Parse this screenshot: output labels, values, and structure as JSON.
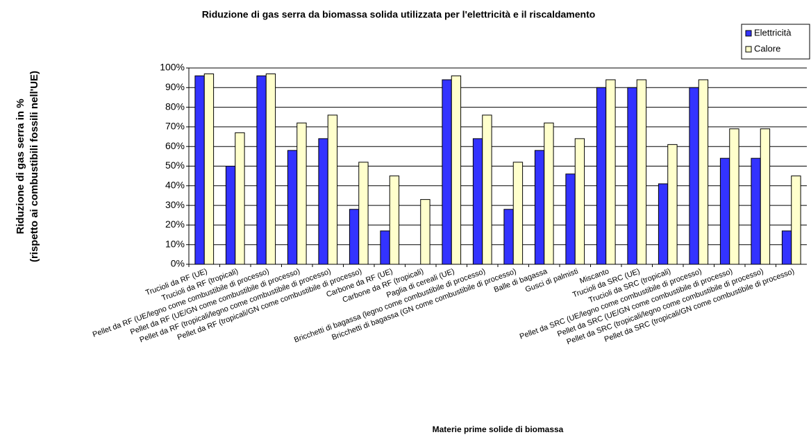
{
  "chart_data": {
    "type": "bar",
    "title": "Riduzione di gas serra da biomassa solida utilizzata per l'elettricità e il riscaldamento",
    "y_label_lines": [
      "Riduzione di gas serra in %",
      "(rispetto ai combustibili fossili nell'UE)"
    ],
    "x_label": "Materie prime solide di biomassa",
    "categories": [
      "Trucioli da RF (UE)",
      "Trucioli da RF (tropicali)",
      "Pellet da RF (UE/legno come combustibile di processo)",
      "Pellet da RF (UE/GN come combustibile di processo)",
      "Pellet da RF (tropicali/legno come combustibile di processo)",
      "Pellet da RF (tropicali/GN come combustibile di processo)",
      "Carbone da RF (UE)",
      "Carbone da RF (tropicali)",
      "Paglia di cereali (UE)",
      "Bricchetti di bagassa (legno come combustibile di processo)",
      "Bricchetti di bagassa (GN come combustibile di processo)",
      "Balle di bagassa",
      "Gusci di palmisti",
      "Miscanto",
      "Trucioli da SRC (UE)",
      "Trucioli da SRC (tropicali)",
      "Pellet da SRC (UE/legno come combustibile di processo)",
      "Pellet da SRC (UE/GN come combustibile di processo)",
      "Pellet da SRC (tropicali/legno come combustibile di processo)",
      "Pellet da SRC (tropicali/GN come combustibile di processo)"
    ],
    "series": [
      {
        "name": "Elettricità",
        "color": "#3333ff",
        "values": [
          96,
          50,
          96,
          58,
          64,
          28,
          17,
          null,
          94,
          64,
          28,
          58,
          46,
          90,
          90,
          41,
          90,
          54,
          54,
          17
        ]
      },
      {
        "name": "Calore",
        "color": "#ffffcc",
        "values": [
          97,
          67,
          97,
          72,
          76,
          52,
          45,
          33,
          96,
          76,
          52,
          72,
          64,
          94,
          94,
          61,
          94,
          69,
          69,
          45
        ]
      }
    ],
    "ylim": [
      0,
      100
    ],
    "yticks": [
      {
        "value": 0,
        "label": "0%"
      },
      {
        "value": 10,
        "label": "10%"
      },
      {
        "value": 20,
        "label": "20%"
      },
      {
        "value": 30,
        "label": "30%"
      },
      {
        "value": 40,
        "label": "40%"
      },
      {
        "value": 50,
        "label": "50%"
      },
      {
        "value": 60,
        "label": "60%"
      },
      {
        "value": 70,
        "label": "70%"
      },
      {
        "value": 80,
        "label": "80%"
      },
      {
        "value": 90,
        "label": "90%"
      },
      {
        "value": 100,
        "label": "100%"
      }
    ],
    "grid": true,
    "legend": "top-right"
  }
}
